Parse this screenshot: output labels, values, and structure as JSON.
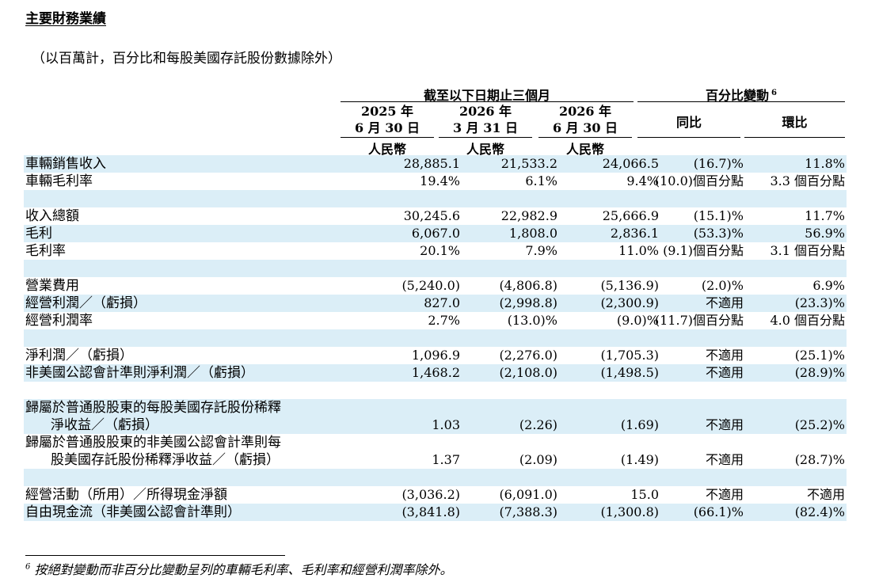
{
  "title": "主要財務業績",
  "subtitle": "（以百萬計，百分比和每股美國存託股份數據除外）",
  "header": {
    "period_group": "截至以下日期止三個月",
    "change_group": "百分比變動",
    "change_group_note": "6",
    "periods": [
      {
        "year": "2025 年",
        "date": "6 月 30 日",
        "currency": "人民幣"
      },
      {
        "year": "2026 年",
        "date": "3 月 31 日",
        "currency": "人民幣"
      },
      {
        "year": "2026 年",
        "date": "6 月 30 日",
        "currency": "人民幣"
      }
    ],
    "yoy": "同比",
    "qoq": "環比"
  },
  "rows": [
    {
      "label": "車輛銷售收入",
      "v1": "28,885.1",
      "v2": "21,533.2",
      "v3": "24,066.5",
      "yoy": "(16.7)%",
      "qoq": "11.8%"
    },
    {
      "label": "車輛毛利率",
      "v1": "19.4%",
      "v2": "6.1%",
      "v3": "9.4%",
      "yoy": "(10.0)個百分點",
      "qoq": "3.3 個百分點"
    },
    {
      "label": "收入總額",
      "v1": "30,245.6",
      "v2": "22,982.9",
      "v3": "25,666.9",
      "yoy": "(15.1)%",
      "qoq": "11.7%"
    },
    {
      "label": "毛利",
      "v1": "6,067.0",
      "v2": "1,808.0",
      "v3": "2,836.1",
      "yoy": "(53.3)%",
      "qoq": "56.9%"
    },
    {
      "label": "毛利率",
      "v1": "20.1%",
      "v2": "7.9%",
      "v3": "11.0%",
      "yoy": "(9.1)個百分點",
      "qoq": "3.1 個百分點"
    },
    {
      "label": "營業費用",
      "v1": "(5,240.0)",
      "v2": "(4,806.8)",
      "v3": "(5,136.9)",
      "yoy": "(2.0)%",
      "qoq": "6.9%"
    },
    {
      "label": "經營利潤／（虧損）",
      "v1": "827.0",
      "v2": "(2,998.8)",
      "v3": "(2,300.9)",
      "yoy": "不適用",
      "qoq": "(23.3)%"
    },
    {
      "label": "經營利潤率",
      "v1": "2.7%",
      "v2": "(13.0)%",
      "v3": "(9.0)%",
      "yoy": "(11.7)個百分點",
      "qoq": "4.0 個百分點"
    },
    {
      "label": "淨利潤／（虧損）",
      "v1": "1,096.9",
      "v2": "(2,276.0)",
      "v3": "(1,705.3)",
      "yoy": "不適用",
      "qoq": "(25.1)%"
    },
    {
      "label": "非美國公認會計準則淨利潤／（虧損）",
      "v1": "1,468.2",
      "v2": "(2,108.0)",
      "v3": "(1,498.5)",
      "yoy": "不適用",
      "qoq": "(28.9)%"
    },
    {
      "label_line1": "歸屬於普通股股東的每股美國存託股份稀釋",
      "label_line2": "淨收益／（虧損）",
      "v1": "1.03",
      "v2": "(2.26)",
      "v3": "(1.69)",
      "yoy": "不適用",
      "qoq": "(25.2)%"
    },
    {
      "label_line1": "歸屬於普通股股東的非美國公認會計準則每",
      "label_line2": "股美國存託股份稀釋淨收益／（虧損）",
      "v1": "1.37",
      "v2": "(2.09)",
      "v3": "(1.49)",
      "yoy": "不適用",
      "qoq": "(28.7)%"
    },
    {
      "label": "經營活動（所用）／所得現金淨額",
      "v1": "(3,036.2)",
      "v2": "(6,091.0)",
      "v3": "15.0",
      "yoy": "不適用",
      "qoq": "不適用"
    },
    {
      "label": "自由現金流（非美國公認會計準則）",
      "v1": "(3,841.8)",
      "v2": "(7,388.3)",
      "v3": "(1,300.8)",
      "yoy": "(66.1)%",
      "qoq": "(82.4)%"
    }
  ],
  "footnote": {
    "marker": "6",
    "text": "按絕對變動而非百分比變動呈列的車輛毛利率、毛利率和經營利潤率除外。"
  }
}
